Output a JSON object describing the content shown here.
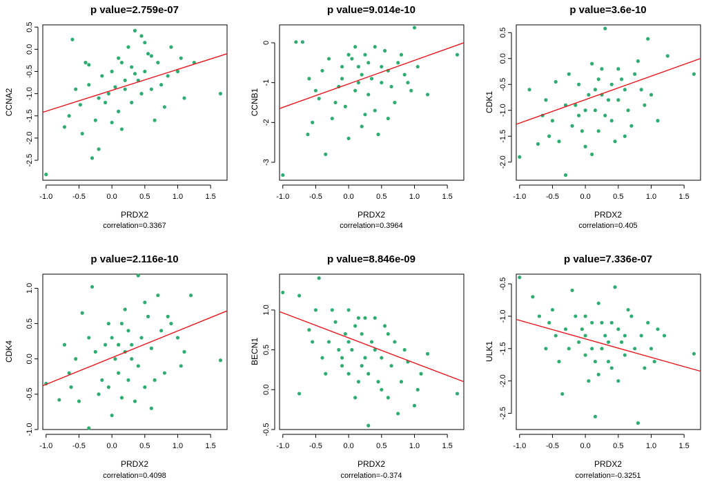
{
  "colors": {
    "point": "#2eac71",
    "line": "#e8141a",
    "axis": "#000000",
    "background": "#ffffff"
  },
  "chart_data": [
    {
      "type": "scatter",
      "title": "p value=2.759e-07",
      "xlabel": "PRDX2",
      "ylabel": "CCNA2",
      "correlation_label": "correlation=0.3367",
      "xlim": [
        -1.05,
        1.75
      ],
      "ylim": [
        -2.95,
        0.55
      ],
      "xticks": [
        "-1.0",
        "-0.5",
        "0.0",
        "0.5",
        "1.0",
        "1.5"
      ],
      "yticks": [
        "-2.5",
        "-2.0",
        "-1.5",
        "-1.0",
        "-0.5",
        "0.0",
        "0.5"
      ],
      "fit_line": [
        [
          -1.05,
          -1.42
        ],
        [
          1.75,
          -0.1
        ]
      ],
      "points": [
        [
          -1.0,
          -2.82
        ],
        [
          -0.6,
          0.22
        ],
        [
          -0.72,
          -1.75
        ],
        [
          -0.65,
          -1.5
        ],
        [
          -0.45,
          -1.9
        ],
        [
          -0.48,
          -1.25
        ],
        [
          -0.4,
          -0.3
        ],
        [
          -0.35,
          -0.8
        ],
        [
          -0.3,
          -2.45
        ],
        [
          -0.2,
          -2.25
        ],
        [
          -0.25,
          -1.6
        ],
        [
          -0.1,
          -1.2
        ],
        [
          0.0,
          -0.5
        ],
        [
          0.1,
          -0.2
        ],
        [
          0.2,
          -0.9
        ],
        [
          0.3,
          -1.2
        ],
        [
          0.35,
          0.42
        ],
        [
          0.45,
          0.3
        ],
        [
          0.5,
          -0.5
        ],
        [
          0.55,
          -0.1
        ],
        [
          0.6,
          -0.9
        ],
        [
          0.7,
          -0.3
        ],
        [
          0.8,
          -1.3
        ],
        [
          0.9,
          0.05
        ],
        [
          1.0,
          -0.5
        ],
        [
          1.05,
          -0.2
        ],
        [
          1.1,
          -1.1
        ],
        [
          1.25,
          -0.3
        ],
        [
          1.65,
          -1.0
        ],
        [
          0.15,
          -1.8
        ],
        [
          -0.15,
          -0.6
        ],
        [
          0.25,
          0.05
        ],
        [
          0.4,
          -0.7
        ],
        [
          -0.05,
          -1.0
        ],
        [
          0.65,
          -1.6
        ],
        [
          0.3,
          -0.4
        ],
        [
          0.1,
          -1.4
        ],
        [
          0.2,
          -0.7
        ],
        [
          0.5,
          0.15
        ],
        [
          0.75,
          -0.8
        ],
        [
          -0.55,
          -0.9
        ],
        [
          0.05,
          -0.85
        ],
        [
          0.85,
          -0.6
        ],
        [
          0.15,
          -0.3
        ],
        [
          0.45,
          -1.0
        ],
        [
          -0.35,
          -0.35
        ],
        [
          0.6,
          -0.15
        ],
        [
          0.0,
          -1.65
        ],
        [
          0.35,
          -0.55
        ],
        [
          -0.2,
          -1.1
        ]
      ]
    },
    {
      "type": "scatter",
      "title": "p value=9.014e-10",
      "xlabel": "PRDX2",
      "ylabel": "CCNB1",
      "correlation_label": "correlation=0.3964",
      "xlim": [
        -1.05,
        1.75
      ],
      "ylim": [
        -3.45,
        0.45
      ],
      "xticks": [
        "-1.0",
        "-0.5",
        "0.0",
        "0.5",
        "1.0",
        "1.5"
      ],
      "yticks": [
        "-3",
        "-2",
        "-1",
        "0"
      ],
      "fit_line": [
        [
          -1.05,
          -1.65
        ],
        [
          1.75,
          0.0
        ]
      ],
      "points": [
        [
          -1.0,
          -3.32
        ],
        [
          -0.8,
          0.02
        ],
        [
          -0.7,
          0.02
        ],
        [
          -0.62,
          -2.3
        ],
        [
          -0.55,
          -2.0
        ],
        [
          -0.5,
          -1.2
        ],
        [
          -0.4,
          -0.7
        ],
        [
          -0.3,
          -0.4
        ],
        [
          -0.35,
          -2.8
        ],
        [
          -0.2,
          -1.5
        ],
        [
          -0.1,
          -0.9
        ],
        [
          0.0,
          -0.3
        ],
        [
          0.1,
          -1.2
        ],
        [
          0.2,
          -2.1
        ],
        [
          0.3,
          -0.5
        ],
        [
          0.4,
          -0.1
        ],
        [
          0.5,
          -1.0
        ],
        [
          0.6,
          -0.7
        ],
        [
          0.7,
          -1.5
        ],
        [
          0.8,
          -0.3
        ],
        [
          0.9,
          -1.0
        ],
        [
          1.0,
          0.38
        ],
        [
          1.05,
          -0.6
        ],
        [
          1.2,
          -1.3
        ],
        [
          1.65,
          -0.3
        ],
        [
          0.15,
          -0.6
        ],
        [
          0.25,
          -1.8
        ],
        [
          0.35,
          -0.9
        ],
        [
          -0.05,
          -1.6
        ],
        [
          0.45,
          -2.3
        ],
        [
          0.55,
          -0.2
        ],
        [
          0.65,
          -1.1
        ],
        [
          0.05,
          -0.4
        ],
        [
          -0.15,
          -1.1
        ],
        [
          0.2,
          -0.8
        ],
        [
          0.75,
          -0.5
        ],
        [
          -0.25,
          -1.9
        ],
        [
          0.1,
          -0.1
        ],
        [
          0.3,
          -1.3
        ],
        [
          0.5,
          -0.6
        ],
        [
          -0.45,
          -1.4
        ],
        [
          0.0,
          -2.4
        ],
        [
          0.4,
          -1.7
        ],
        [
          0.85,
          -0.8
        ],
        [
          0.15,
          -1.0
        ],
        [
          -0.6,
          -0.9
        ],
        [
          0.6,
          -1.9
        ],
        [
          0.25,
          -0.3
        ],
        [
          0.95,
          -1.2
        ],
        [
          -0.1,
          -0.6
        ]
      ]
    },
    {
      "type": "scatter",
      "title": "p value=3.6e-10",
      "xlabel": "PRDX2",
      "ylabel": "CDK1",
      "correlation_label": "correlation=0.405",
      "xlim": [
        -1.05,
        1.75
      ],
      "ylim": [
        -2.35,
        0.65
      ],
      "xticks": [
        "-1.0",
        "-0.5",
        "0.0",
        "0.5",
        "1.0",
        "1.5"
      ],
      "yticks": [
        "-2.0",
        "-1.5",
        "-1.0",
        "-0.5",
        "0.0",
        "0.5"
      ],
      "fit_line": [
        [
          -1.05,
          -1.27
        ],
        [
          1.75,
          0.0
        ]
      ],
      "points": [
        [
          -1.0,
          -1.9
        ],
        [
          -0.85,
          -0.6
        ],
        [
          -0.72,
          -1.65
        ],
        [
          -0.65,
          -1.1
        ],
        [
          -0.55,
          -1.5
        ],
        [
          -0.45,
          -0.45
        ],
        [
          -0.4,
          -1.6
        ],
        [
          -0.3,
          -2.25
        ],
        [
          -0.3,
          -0.9
        ],
        [
          -0.2,
          -1.3
        ],
        [
          -0.1,
          -0.5
        ],
        [
          0.0,
          -1.0
        ],
        [
          0.1,
          -1.85
        ],
        [
          0.2,
          -0.4
        ],
        [
          0.3,
          0.58
        ],
        [
          0.35,
          -0.8
        ],
        [
          0.4,
          -1.2
        ],
        [
          0.5,
          -0.2
        ],
        [
          0.6,
          -0.6
        ],
        [
          0.7,
          -1.3
        ],
        [
          0.8,
          -0.05
        ],
        [
          0.9,
          -0.9
        ],
        [
          0.95,
          0.38
        ],
        [
          1.1,
          -1.2
        ],
        [
          1.25,
          0.05
        ],
        [
          1.65,
          -0.3
        ],
        [
          0.15,
          -1.0
        ],
        [
          0.25,
          -0.7
        ],
        [
          -0.05,
          -1.4
        ],
        [
          0.45,
          -1.6
        ],
        [
          0.55,
          -0.4
        ],
        [
          0.65,
          -1.0
        ],
        [
          0.05,
          -0.7
        ],
        [
          -0.15,
          -0.9
        ],
        [
          0.2,
          -1.4
        ],
        [
          0.75,
          -0.3
        ],
        [
          -0.25,
          -0.3
        ],
        [
          0.1,
          -0.1
        ],
        [
          0.3,
          -1.1
        ],
        [
          0.5,
          -0.8
        ],
        [
          -0.5,
          -1.2
        ],
        [
          0.0,
          -1.7
        ],
        [
          0.4,
          -0.5
        ],
        [
          0.85,
          -0.6
        ],
        [
          0.15,
          -0.6
        ],
        [
          -0.6,
          -0.8
        ],
        [
          0.6,
          -1.5
        ],
        [
          0.25,
          -0.2
        ],
        [
          1.0,
          -0.7
        ],
        [
          -0.1,
          -1.1
        ]
      ]
    },
    {
      "type": "scatter",
      "title": "p value=2.116e-10",
      "xlabel": "PRDX2",
      "ylabel": "CDK4",
      "correlation_label": "correlation=0.4098",
      "xlim": [
        -1.05,
        1.75
      ],
      "ylim": [
        -1.0,
        1.2
      ],
      "xticks": [
        "-1.0",
        "-0.5",
        "0.0",
        "0.5",
        "1.0",
        "1.5"
      ],
      "yticks": [
        "-1.0",
        "-0.5",
        "0.0",
        "0.5",
        "1.0"
      ],
      "fit_line": [
        [
          -1.05,
          -0.38
        ],
        [
          1.75,
          0.68
        ]
      ],
      "points": [
        [
          -1.0,
          -0.35
        ],
        [
          -0.8,
          -0.58
        ],
        [
          -0.72,
          0.2
        ],
        [
          -0.62,
          -0.4
        ],
        [
          -0.5,
          -0.6
        ],
        [
          -0.45,
          0.65
        ],
        [
          -0.35,
          -0.98
        ],
        [
          -0.3,
          1.02
        ],
        [
          -0.25,
          0.1
        ],
        [
          -0.15,
          -0.3
        ],
        [
          -0.05,
          0.5
        ],
        [
          0.0,
          -0.8
        ],
        [
          0.1,
          0.2
        ],
        [
          0.15,
          -0.55
        ],
        [
          0.2,
          0.7
        ],
        [
          0.3,
          0.0
        ],
        [
          0.4,
          1.18
        ],
        [
          0.45,
          0.3
        ],
        [
          0.5,
          -0.4
        ],
        [
          0.6,
          0.15
        ],
        [
          0.7,
          0.9
        ],
        [
          0.8,
          -0.2
        ],
        [
          0.9,
          0.5
        ],
        [
          1.0,
          0.3
        ],
        [
          1.05,
          -0.1
        ],
        [
          1.2,
          0.9
        ],
        [
          1.65,
          -0.02
        ],
        [
          0.25,
          0.4
        ],
        [
          0.35,
          -0.6
        ],
        [
          -0.1,
          0.2
        ],
        [
          0.55,
          0.6
        ],
        [
          0.65,
          -0.3
        ],
        [
          0.05,
          0.0
        ],
        [
          -0.2,
          -0.5
        ],
        [
          0.2,
          0.1
        ],
        [
          0.75,
          0.4
        ],
        [
          -0.35,
          0.3
        ],
        [
          0.1,
          -0.2
        ],
        [
          0.3,
          0.2
        ],
        [
          0.5,
          0.8
        ],
        [
          -0.55,
          0.0
        ],
        [
          0.0,
          0.3
        ],
        [
          0.4,
          -0.1
        ],
        [
          0.85,
          0.6
        ],
        [
          0.15,
          0.5
        ],
        [
          -0.65,
          -0.2
        ],
        [
          0.6,
          -0.7
        ],
        [
          0.25,
          -0.3
        ],
        [
          1.1,
          0.1
        ],
        [
          -0.05,
          -0.4
        ]
      ]
    },
    {
      "type": "scatter",
      "title": "p value=8.846e-09",
      "xlabel": "PRDX2",
      "ylabel": "BECN1",
      "correlation_label": "correlation=-0.374",
      "xlim": [
        -1.05,
        1.75
      ],
      "ylim": [
        -0.5,
        1.45
      ],
      "xticks": [
        "-1.0",
        "-0.5",
        "0.0",
        "0.5",
        "1.0",
        "1.5"
      ],
      "yticks": [
        "-0.5",
        "0.0",
        "0.5",
        "1.0"
      ],
      "fit_line": [
        [
          -1.05,
          0.98
        ],
        [
          1.75,
          0.1
        ]
      ],
      "points": [
        [
          -1.0,
          1.22
        ],
        [
          -0.75,
          1.18
        ],
        [
          -0.75,
          -0.05
        ],
        [
          -0.6,
          0.75
        ],
        [
          -0.5,
          1.0
        ],
        [
          -0.45,
          1.4
        ],
        [
          -0.35,
          0.2
        ],
        [
          -0.3,
          0.6
        ],
        [
          -0.2,
          0.85
        ],
        [
          -0.1,
          0.3
        ],
        [
          0.0,
          1.0
        ],
        [
          0.05,
          0.5
        ],
        [
          0.1,
          -0.1
        ],
        [
          0.2,
          0.7
        ],
        [
          0.3,
          0.2
        ],
        [
          0.3,
          -0.45
        ],
        [
          0.4,
          0.9
        ],
        [
          0.5,
          0.4
        ],
        [
          0.6,
          -0.1
        ],
        [
          0.7,
          0.6
        ],
        [
          0.8,
          0.1
        ],
        [
          0.9,
          0.35
        ],
        [
          1.0,
          -0.2
        ],
        [
          1.1,
          0.2
        ],
        [
          1.2,
          0.45
        ],
        [
          1.65,
          -0.05
        ],
        [
          0.15,
          0.9
        ],
        [
          0.25,
          0.4
        ],
        [
          -0.05,
          0.7
        ],
        [
          0.45,
          0.1
        ],
        [
          0.55,
          0.8
        ],
        [
          0.65,
          0.3
        ],
        [
          0.0,
          0.6
        ],
        [
          -0.15,
          0.5
        ],
        [
          0.2,
          0.3
        ],
        [
          0.75,
          -0.3
        ],
        [
          -0.25,
          1.0
        ],
        [
          0.1,
          0.8
        ],
        [
          0.35,
          0.6
        ],
        [
          0.5,
          0.0
        ],
        [
          -0.4,
          0.4
        ],
        [
          0.0,
          0.2
        ],
        [
          0.4,
          0.5
        ],
        [
          0.85,
          0.5
        ],
        [
          0.15,
          0.1
        ],
        [
          -0.55,
          0.6
        ],
        [
          0.6,
          0.7
        ],
        [
          0.25,
          0.9
        ],
        [
          1.05,
          0.0
        ],
        [
          -0.1,
          0.4
        ]
      ]
    },
    {
      "type": "scatter",
      "title": "p value=7.336e-07",
      "xlabel": "PRDX2",
      "ylabel": "ULK1",
      "correlation_label": "correlation=-0.3251",
      "xlim": [
        -1.05,
        1.75
      ],
      "ylim": [
        -2.75,
        -0.35
      ],
      "xticks": [
        "-1.0",
        "-0.5",
        "0.0",
        "0.5",
        "1.0",
        "1.5"
      ],
      "yticks": [
        "-2.5",
        "-2.0",
        "-1.5",
        "-1.0",
        "-0.5"
      ],
      "fit_line": [
        [
          -1.05,
          -1.05
        ],
        [
          1.75,
          -1.85
        ]
      ],
      "points": [
        [
          -1.0,
          -0.4
        ],
        [
          -0.8,
          -0.7
        ],
        [
          -0.7,
          -1.0
        ],
        [
          -0.6,
          -1.5
        ],
        [
          -0.5,
          -0.9
        ],
        [
          -0.4,
          -1.7
        ],
        [
          -0.3,
          -1.2
        ],
        [
          -0.35,
          -2.2
        ],
        [
          -0.2,
          -0.6
        ],
        [
          -0.1,
          -1.4
        ],
        [
          0.0,
          -1.0
        ],
        [
          0.05,
          -2.0
        ],
        [
          0.1,
          -1.5
        ],
        [
          0.15,
          -2.55
        ],
        [
          0.2,
          -0.8
        ],
        [
          0.3,
          -1.3
        ],
        [
          0.4,
          -1.8
        ],
        [
          0.45,
          -0.55
        ],
        [
          0.5,
          -1.2
        ],
        [
          0.6,
          -1.6
        ],
        [
          0.7,
          -1.0
        ],
        [
          0.8,
          -2.65
        ],
        [
          0.85,
          -1.3
        ],
        [
          0.9,
          -1.8
        ],
        [
          1.0,
          -1.5
        ],
        [
          1.1,
          -1.2
        ],
        [
          1.2,
          -1.3
        ],
        [
          1.65,
          -1.58
        ],
        [
          0.25,
          -1.1
        ],
        [
          0.35,
          -1.7
        ],
        [
          -0.05,
          -1.2
        ],
        [
          0.55,
          -1.4
        ],
        [
          0.65,
          -0.9
        ],
        [
          0.0,
          -1.6
        ],
        [
          -0.15,
          -1.0
        ],
        [
          0.2,
          -1.9
        ],
        [
          0.75,
          -1.5
        ],
        [
          -0.25,
          -1.5
        ],
        [
          0.1,
          -1.1
        ],
        [
          0.35,
          -1.4
        ],
        [
          0.5,
          -2.0
        ],
        [
          -0.45,
          -1.3
        ],
        [
          0.0,
          -1.3
        ],
        [
          0.4,
          -1.1
        ],
        [
          0.95,
          -1.1
        ],
        [
          0.15,
          -1.7
        ],
        [
          -0.55,
          -1.1
        ],
        [
          0.6,
          -1.3
        ],
        [
          0.25,
          -1.5
        ],
        [
          1.05,
          -1.7
        ]
      ]
    }
  ]
}
